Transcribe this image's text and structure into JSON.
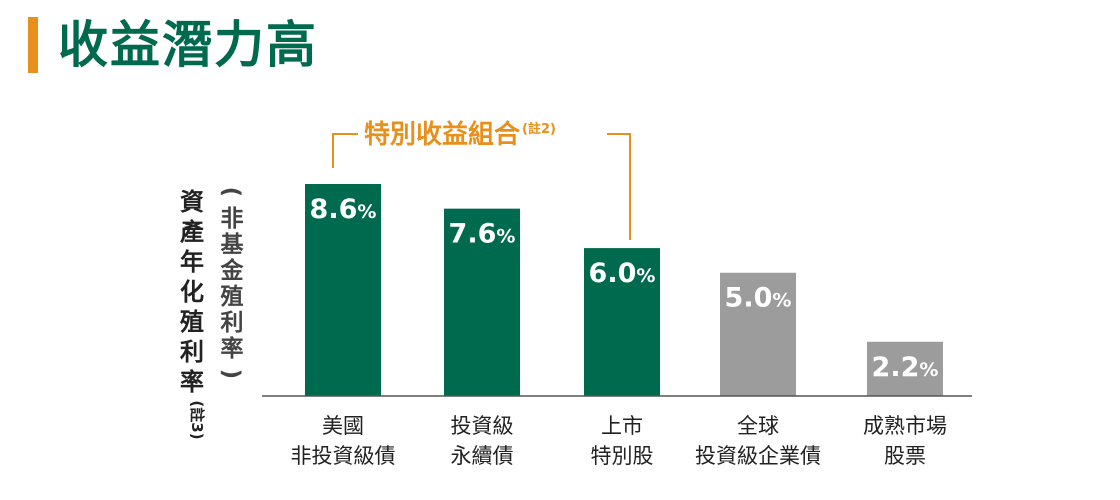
{
  "page": {
    "title": "收益潛力高",
    "accent_color": "#e8901c",
    "title_color": "#006a4e"
  },
  "chart_data": {
    "type": "bar",
    "title": "",
    "ylabel_main": "資產年化殖利率",
    "ylabel_sub": "(非基金殖利率)",
    "ylabel_note": "(註3)",
    "categories": [
      [
        "美國",
        "非投資級債"
      ],
      [
        "投資級",
        "永續債"
      ],
      [
        "上市",
        "特別股"
      ],
      [
        "全球",
        "投資級企業債"
      ],
      [
        "成熟市場",
        "股票"
      ]
    ],
    "values": [
      8.6,
      7.6,
      6.0,
      5.0,
      2.2
    ],
    "data_labels": [
      "8.6",
      "7.6",
      "6.0",
      "5.0",
      "2.2"
    ],
    "value_suffix": "%",
    "bar_colors": [
      "#006a4e",
      "#006a4e",
      "#006a4e",
      "#9c9c9c",
      "#9c9c9c"
    ],
    "ylim": [
      0,
      8.6
    ],
    "grid": false,
    "bracket": {
      "label": "特別收益組合",
      "note": "(註2)",
      "covers": [
        0,
        2
      ],
      "color": "#e8901c"
    }
  }
}
